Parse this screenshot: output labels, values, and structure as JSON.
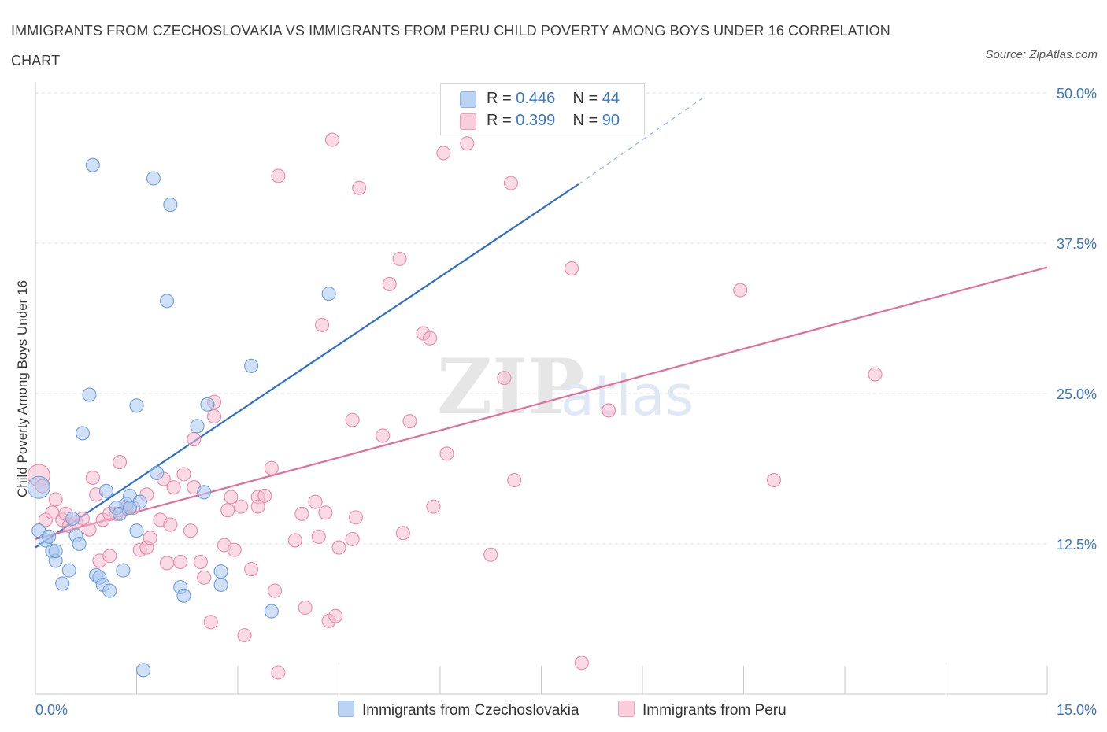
{
  "title": "IMMIGRANTS FROM CZECHOSLOVAKIA VS IMMIGRANTS FROM PERU CHILD POVERTY AMONG BOYS UNDER 16 CORRELATION CHART",
  "source": "Source: ZipAtlas.com",
  "watermark": {
    "zip": "ZIP",
    "atlas": "atlas"
  },
  "legend": {
    "r_label": "R =",
    "n_label": "N =",
    "czech": {
      "r": "0.446",
      "n": "44"
    },
    "peru": {
      "r": "0.399",
      "n": "90"
    }
  },
  "colors": {
    "czech_fill": "#aac8f0",
    "czech_stroke": "#6f9ed8",
    "czech_line": "#2f6fcc",
    "peru_fill": "#f5bccf",
    "peru_stroke": "#e88aa8",
    "peru_line": "#e0709a",
    "axis_tick_text": "#3b76c4",
    "grid": "#e2e2e2"
  },
  "chart_data": {
    "type": "scatter",
    "xlabel": "",
    "ylabel": "Child Poverty Among Boys Under 16",
    "xlim": [
      0,
      15
    ],
    "ylim": [
      0,
      50
    ],
    "x_tick_labels": [
      "0.0%",
      "15.0%"
    ],
    "y_ticks": [
      12.5,
      25.0,
      37.5,
      50.0
    ],
    "y_tick_labels": [
      "12.5%",
      "25.0%",
      "37.5%",
      "50.0%"
    ],
    "grid": true,
    "legend_position": "top-center",
    "series": [
      {
        "name": "Immigrants from Czechoslovakia",
        "points": [
          [
            0.05,
            17.2
          ],
          [
            0.05,
            13.6
          ],
          [
            0.15,
            12.8
          ],
          [
            0.2,
            13.1
          ],
          [
            0.25,
            11.9
          ],
          [
            0.3,
            11.1
          ],
          [
            0.4,
            9.2
          ],
          [
            0.5,
            10.3
          ],
          [
            0.55,
            14.6
          ],
          [
            0.6,
            13.2
          ],
          [
            0.65,
            12.5
          ],
          [
            0.7,
            21.7
          ],
          [
            0.8,
            24.9
          ],
          [
            0.9,
            9.9
          ],
          [
            0.95,
            9.7
          ],
          [
            0.85,
            44.0
          ],
          [
            1.0,
            9.1
          ],
          [
            1.05,
            16.9
          ],
          [
            1.1,
            8.6
          ],
          [
            1.2,
            15.5
          ],
          [
            1.25,
            15.0
          ],
          [
            1.3,
            10.3
          ],
          [
            1.35,
            15.8
          ],
          [
            1.4,
            16.5
          ],
          [
            1.5,
            13.6
          ],
          [
            1.55,
            16.0
          ],
          [
            1.5,
            24.0
          ],
          [
            1.75,
            42.9
          ],
          [
            1.8,
            18.4
          ],
          [
            1.95,
            32.7
          ],
          [
            2.0,
            40.7
          ],
          [
            2.15,
            8.9
          ],
          [
            2.2,
            8.2
          ],
          [
            2.4,
            22.3
          ],
          [
            2.5,
            16.8
          ],
          [
            2.55,
            24.1
          ],
          [
            2.75,
            9.1
          ],
          [
            2.75,
            10.2
          ],
          [
            3.2,
            27.3
          ],
          [
            3.5,
            6.9
          ],
          [
            4.35,
            33.3
          ],
          [
            1.6,
            2.0
          ],
          [
            0.3,
            11.9
          ],
          [
            1.4,
            15.5
          ]
        ]
      },
      {
        "name": "Immigrants from Peru",
        "points": [
          [
            0.05,
            18.2
          ],
          [
            0.1,
            17.3
          ],
          [
            0.15,
            14.5
          ],
          [
            0.25,
            15.1
          ],
          [
            0.3,
            16.2
          ],
          [
            0.4,
            14.5
          ],
          [
            0.45,
            15.0
          ],
          [
            0.5,
            14.0
          ],
          [
            0.6,
            14.3
          ],
          [
            0.7,
            14.6
          ],
          [
            0.8,
            13.7
          ],
          [
            0.85,
            18.0
          ],
          [
            0.9,
            16.6
          ],
          [
            0.95,
            11.1
          ],
          [
            1.0,
            14.5
          ],
          [
            1.1,
            11.5
          ],
          [
            1.2,
            15.0
          ],
          [
            1.25,
            19.3
          ],
          [
            1.35,
            15.5
          ],
          [
            1.45,
            15.5
          ],
          [
            1.55,
            12.0
          ],
          [
            1.65,
            12.2
          ],
          [
            1.65,
            16.6
          ],
          [
            1.7,
            13.0
          ],
          [
            1.85,
            14.5
          ],
          [
            1.9,
            17.9
          ],
          [
            1.95,
            10.9
          ],
          [
            2.0,
            14.1
          ],
          [
            2.05,
            17.2
          ],
          [
            2.15,
            11.0
          ],
          [
            2.2,
            18.3
          ],
          [
            2.3,
            13.6
          ],
          [
            2.35,
            21.2
          ],
          [
            2.45,
            11.0
          ],
          [
            2.5,
            9.7
          ],
          [
            2.6,
            6.0
          ],
          [
            2.65,
            24.3
          ],
          [
            2.65,
            23.1
          ],
          [
            2.8,
            12.4
          ],
          [
            2.85,
            15.3
          ],
          [
            2.9,
            16.4
          ],
          [
            2.95,
            12.0
          ],
          [
            3.05,
            15.6
          ],
          [
            3.1,
            4.9
          ],
          [
            3.2,
            10.4
          ],
          [
            3.3,
            16.4
          ],
          [
            3.4,
            16.5
          ],
          [
            3.5,
            18.8
          ],
          [
            3.55,
            8.6
          ],
          [
            3.6,
            1.8
          ],
          [
            3.6,
            43.1
          ],
          [
            3.85,
            12.8
          ],
          [
            3.95,
            15.0
          ],
          [
            4.0,
            7.2
          ],
          [
            4.15,
            16.0
          ],
          [
            4.2,
            13.1
          ],
          [
            4.3,
            15.1
          ],
          [
            4.25,
            30.7
          ],
          [
            4.35,
            6.1
          ],
          [
            4.45,
            6.5
          ],
          [
            4.4,
            46.1
          ],
          [
            4.5,
            12.2
          ],
          [
            4.7,
            12.9
          ],
          [
            4.75,
            14.7
          ],
          [
            4.8,
            42.1
          ],
          [
            4.7,
            22.8
          ],
          [
            5.15,
            21.5
          ],
          [
            5.25,
            34.1
          ],
          [
            5.4,
            36.2
          ],
          [
            5.45,
            13.4
          ],
          [
            5.55,
            22.7
          ],
          [
            5.75,
            30.0
          ],
          [
            5.85,
            29.6
          ],
          [
            5.9,
            15.6
          ],
          [
            6.05,
            45.0
          ],
          [
            6.1,
            20.0
          ],
          [
            6.4,
            45.8
          ],
          [
            6.75,
            11.6
          ],
          [
            6.95,
            26.3
          ],
          [
            7.05,
            42.5
          ],
          [
            7.1,
            17.8
          ],
          [
            7.95,
            35.4
          ],
          [
            8.1,
            2.6
          ],
          [
            8.5,
            23.6
          ],
          [
            10.45,
            33.6
          ],
          [
            10.95,
            17.8
          ],
          [
            12.45,
            26.6
          ],
          [
            2.35,
            17.2
          ],
          [
            1.1,
            15.0
          ],
          [
            3.3,
            15.6
          ]
        ]
      }
    ],
    "trend_lines": [
      {
        "series": "Immigrants from Czechoslovakia",
        "from": [
          0,
          12.2
        ],
        "to": [
          8.05,
          42.4
        ],
        "dashed_extension_to": [
          9.9,
          49.6
        ]
      },
      {
        "series": "Immigrants from Peru",
        "from": [
          0,
          12.9
        ],
        "to": [
          15.0,
          35.5
        ]
      }
    ]
  }
}
